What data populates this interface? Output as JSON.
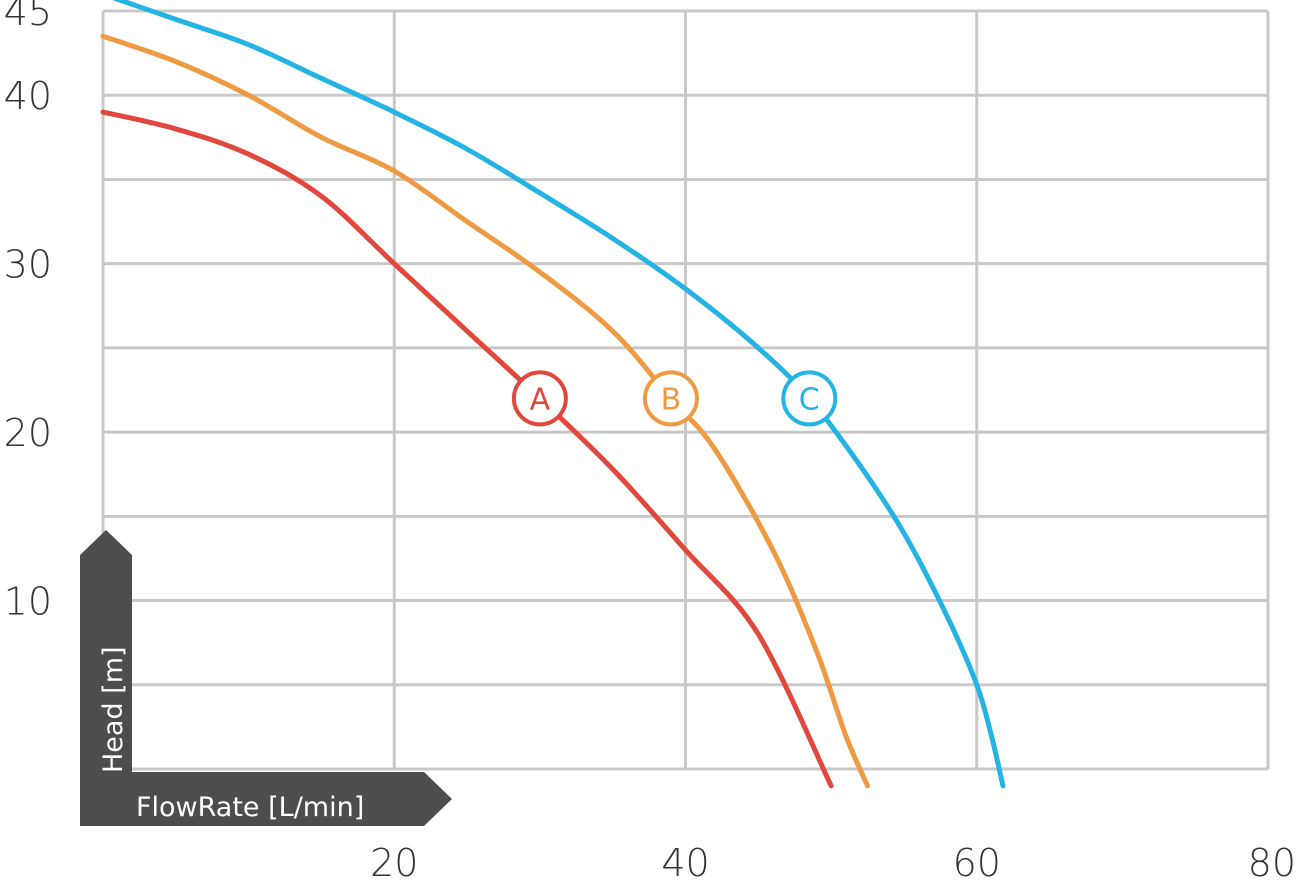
{
  "chart_data": {
    "type": "line",
    "xlabel": "FlowRate [L/min]",
    "ylabel": "Head [m]",
    "xlim": [
      0,
      80
    ],
    "ylim": [
      0,
      45
    ],
    "x_ticks": [
      20,
      40,
      60,
      80
    ],
    "y_ticks": [
      10,
      20,
      30,
      40,
      45
    ],
    "grid": true,
    "x_grid_step": 20,
    "y_grid_step": 5,
    "series": [
      {
        "name": "A",
        "color": "#e2473d",
        "label_at": [
          30,
          22
        ],
        "points": [
          [
            0,
            39
          ],
          [
            5,
            38
          ],
          [
            10,
            36.5
          ],
          [
            15,
            34
          ],
          [
            20,
            30
          ],
          [
            25,
            26
          ],
          [
            30,
            22
          ],
          [
            35,
            17.8
          ],
          [
            40,
            13
          ],
          [
            45,
            8
          ],
          [
            50,
            -1
          ]
        ]
      },
      {
        "name": "B",
        "color": "#ee9a42",
        "label_at": [
          39,
          22
        ],
        "points": [
          [
            0,
            43.5
          ],
          [
            5,
            42
          ],
          [
            10,
            40
          ],
          [
            15,
            37.5
          ],
          [
            20,
            35.5
          ],
          [
            25,
            32.5
          ],
          [
            30,
            29.5
          ],
          [
            35,
            26
          ],
          [
            39,
            22
          ],
          [
            42,
            19
          ],
          [
            46,
            13
          ],
          [
            49,
            7
          ],
          [
            51,
            2
          ],
          [
            52.5,
            -1
          ]
        ]
      },
      {
        "name": "C",
        "color": "#24b4e4",
        "label_at": [
          48.5,
          22
        ],
        "points": [
          [
            0,
            46
          ],
          [
            5,
            44.5
          ],
          [
            10,
            43
          ],
          [
            15,
            41
          ],
          [
            20,
            39
          ],
          [
            25,
            36.8
          ],
          [
            30,
            34.2
          ],
          [
            35,
            31.5
          ],
          [
            40,
            28.5
          ],
          [
            45,
            25
          ],
          [
            48.5,
            22
          ],
          [
            52,
            18
          ],
          [
            55,
            14
          ],
          [
            58,
            9
          ],
          [
            60,
            5
          ],
          [
            61,
            2
          ],
          [
            61.8,
            -1
          ]
        ]
      }
    ]
  }
}
